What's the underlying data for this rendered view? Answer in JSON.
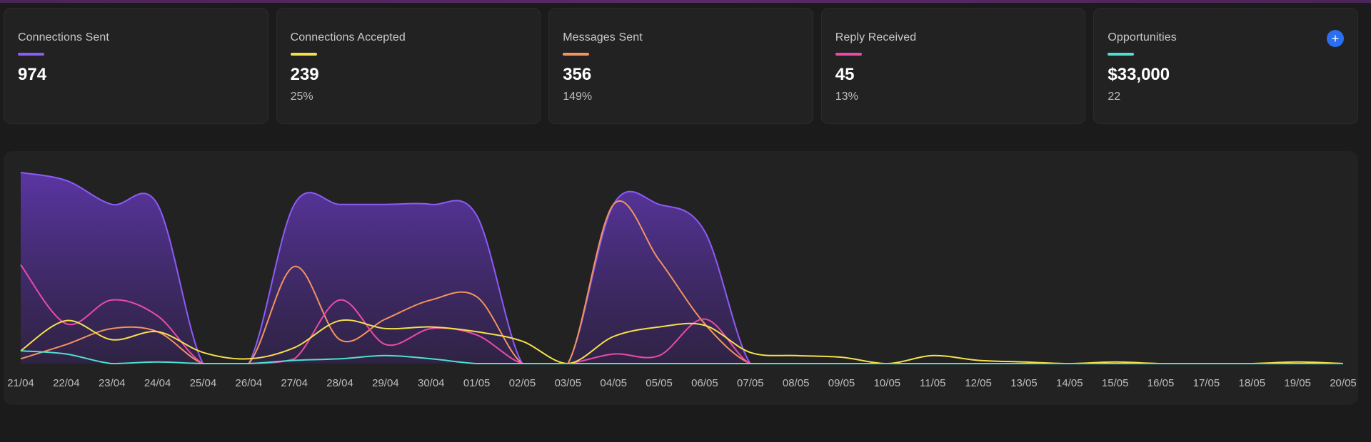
{
  "cards": [
    {
      "title": "Connections Sent",
      "value": "974",
      "sub": "",
      "color": "#8b5cf6"
    },
    {
      "title": "Connections Accepted",
      "value": "239",
      "sub": "25%",
      "color": "#f4e04d"
    },
    {
      "title": "Messages Sent",
      "value": "356",
      "sub": "149%",
      "color": "#f4935e"
    },
    {
      "title": "Reply Received",
      "value": "45",
      "sub": "13%",
      "color": "#ec4aa8"
    },
    {
      "title": "Opportunities",
      "value": "$33,000",
      "sub": "22",
      "color": "#4fe0cf"
    }
  ],
  "add_button": {
    "icon": "plus-icon",
    "label": "+"
  },
  "chart_data": {
    "type": "area",
    "x": [
      "21/04",
      "22/04",
      "23/04",
      "24/04",
      "25/04",
      "26/04",
      "27/04",
      "28/04",
      "29/04",
      "30/04",
      "01/05",
      "02/05",
      "03/05",
      "04/05",
      "05/05",
      "06/05",
      "07/05",
      "08/05",
      "09/05",
      "10/05",
      "11/05",
      "12/05",
      "13/05",
      "14/05",
      "15/05",
      "16/05",
      "17/05",
      "18/05",
      "19/05",
      "20/05"
    ],
    "ylim": [
      0,
      120
    ],
    "grid": false,
    "legend": "none",
    "series": [
      {
        "key": "connections_sent",
        "color": "#8b5cf6",
        "filled": true,
        "values": [
          120,
          115,
          100,
          100,
          0,
          0,
          100,
          100,
          100,
          100,
          93,
          0,
          0,
          100,
          100,
          83,
          0,
          0,
          0,
          0,
          0,
          0,
          0,
          0,
          0,
          0,
          0,
          0,
          0,
          0
        ]
      },
      {
        "key": "messages_sent",
        "color": "#f4935e",
        "filled": false,
        "values": [
          3,
          12,
          22,
          20,
          0,
          0,
          61,
          15,
          28,
          40,
          42,
          0,
          0,
          100,
          65,
          25,
          0,
          0,
          0,
          0,
          0,
          0,
          0,
          0,
          0,
          0,
          0,
          0,
          0,
          0
        ]
      },
      {
        "key": "reply_received",
        "color": "#ec4aa8",
        "filled": false,
        "values": [
          62,
          25,
          40,
          30,
          0,
          0,
          3,
          40,
          12,
          22,
          18,
          0,
          0,
          6,
          5,
          28,
          0,
          0,
          0,
          0,
          0,
          0,
          0,
          0,
          0,
          0,
          0,
          0,
          0,
          0
        ]
      },
      {
        "key": "connections_accepted",
        "color": "#f4e04d",
        "filled": false,
        "values": [
          8,
          27,
          15,
          20,
          7,
          3,
          10,
          27,
          22,
          23,
          20,
          14,
          0,
          17,
          23,
          24,
          7,
          5,
          4,
          0,
          5,
          2,
          1,
          0,
          1,
          0,
          0,
          0,
          1,
          0
        ]
      },
      {
        "key": "opportunities",
        "color": "#4fe0cf",
        "filled": false,
        "values": [
          8,
          6,
          0,
          1,
          0,
          0,
          2,
          3,
          5,
          3,
          0,
          0,
          0,
          0,
          0,
          0,
          0,
          0,
          0,
          0,
          0,
          0,
          0,
          0,
          0,
          0,
          0,
          0,
          0,
          0
        ]
      }
    ]
  }
}
